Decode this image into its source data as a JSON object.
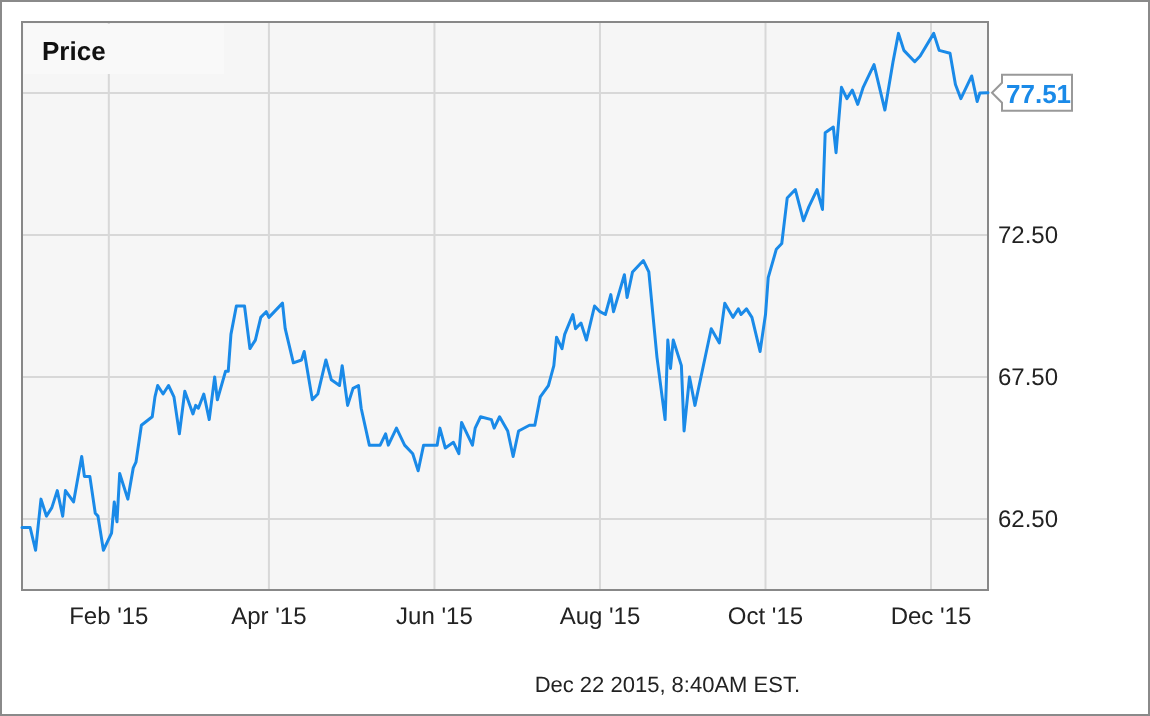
{
  "chart_data": {
    "type": "line",
    "title": "Price",
    "x": [
      "2014-12-31",
      "2015-01-03",
      "2015-01-05",
      "2015-01-07",
      "2015-01-09",
      "2015-01-11",
      "2015-01-13",
      "2015-01-15",
      "2015-01-16",
      "2015-01-19",
      "2015-01-22",
      "2015-01-23",
      "2015-01-25",
      "2015-01-27",
      "2015-01-28",
      "2015-01-30",
      "2015-02-02",
      "2015-02-03",
      "2015-02-04",
      "2015-02-05",
      "2015-02-08",
      "2015-02-10",
      "2015-02-11",
      "2015-02-13",
      "2015-02-17",
      "2015-02-18",
      "2015-02-19",
      "2015-02-21",
      "2015-02-23",
      "2015-02-25",
      "2015-02-27",
      "2015-03-01",
      "2015-03-04",
      "2015-03-05",
      "2015-03-06",
      "2015-03-08",
      "2015-03-10",
      "2015-03-12",
      "2015-03-13",
      "2015-03-16",
      "2015-03-17",
      "2015-03-18",
      "2015-03-20",
      "2015-03-23",
      "2015-03-25",
      "2015-03-27",
      "2015-03-29",
      "2015-03-31",
      "2015-04-01",
      "2015-04-06",
      "2015-04-07",
      "2015-04-10",
      "2015-04-13",
      "2015-04-14",
      "2015-04-17",
      "2015-04-19",
      "2015-04-22",
      "2015-04-24",
      "2015-04-27",
      "2015-04-28",
      "2015-04-30",
      "2015-05-02",
      "2015-05-04",
      "2015-05-05",
      "2015-05-08",
      "2015-05-12",
      "2015-05-14",
      "2015-05-15",
      "2015-05-18",
      "2015-05-21",
      "2015-05-24",
      "2015-05-26",
      "2015-05-28",
      "2015-06-02",
      "2015-06-03",
      "2015-06-05",
      "2015-06-08",
      "2015-06-10",
      "2015-06-11",
      "2015-06-15",
      "2015-06-16",
      "2015-06-18",
      "2015-06-22",
      "2015-06-23",
      "2015-06-25",
      "2015-06-28",
      "2015-06-30",
      "2015-07-02",
      "2015-07-06",
      "2015-07-08",
      "2015-07-10",
      "2015-07-13",
      "2015-07-15",
      "2015-07-16",
      "2015-07-18",
      "2015-07-19",
      "2015-07-22",
      "2015-07-23",
      "2015-07-25",
      "2015-07-27",
      "2015-07-30",
      "2015-08-01",
      "2015-08-03",
      "2015-08-05",
      "2015-08-06",
      "2015-08-10",
      "2015-08-11",
      "2015-08-13",
      "2015-08-15",
      "2015-08-17",
      "2015-08-19",
      "2015-08-22",
      "2015-08-25",
      "2015-08-26",
      "2015-08-27",
      "2015-08-28",
      "2015-08-31",
      "2015-09-01",
      "2015-09-03",
      "2015-09-05",
      "2015-09-09",
      "2015-09-11",
      "2015-09-14",
      "2015-09-16",
      "2015-09-19",
      "2015-09-21",
      "2015-09-22",
      "2015-09-24",
      "2015-09-26",
      "2015-09-29",
      "2015-10-01",
      "2015-10-02",
      "2015-10-05",
      "2015-10-07",
      "2015-10-09",
      "2015-10-12",
      "2015-10-15",
      "2015-10-17",
      "2015-10-20",
      "2015-10-22",
      "2015-10-23",
      "2015-10-26",
      "2015-10-27",
      "2015-10-29",
      "2015-10-31",
      "2015-11-02",
      "2015-11-04",
      "2015-11-06",
      "2015-11-07",
      "2015-11-10",
      "2015-11-14",
      "2015-11-17",
      "2015-11-19",
      "2015-11-21",
      "2015-11-25",
      "2015-11-27",
      "2015-12-02",
      "2015-12-04",
      "2015-12-08",
      "2015-12-10",
      "2015-12-12",
      "2015-12-16",
      "2015-12-18",
      "2015-12-19",
      "2015-12-22"
    ],
    "series": [
      {
        "color": "#1a8ae8",
        "values": [
          62.2,
          62.2,
          61.4,
          63.2,
          62.6,
          62.9,
          63.5,
          62.6,
          63.5,
          63.1,
          64.7,
          64.0,
          64.0,
          62.7,
          62.6,
          61.4,
          62.0,
          63.1,
          62.4,
          64.1,
          63.2,
          64.3,
          64.5,
          65.8,
          66.1,
          66.8,
          67.2,
          66.9,
          67.2,
          66.8,
          65.5,
          67.0,
          66.2,
          66.5,
          66.4,
          66.9,
          66.0,
          67.5,
          66.7,
          67.7,
          67.7,
          69.0,
          70.0,
          70.0,
          68.5,
          68.8,
          69.6,
          69.8,
          69.6,
          70.1,
          69.2,
          68.0,
          68.1,
          68.4,
          66.7,
          66.9,
          68.1,
          67.4,
          67.2,
          67.9,
          66.5,
          67.1,
          67.2,
          66.4,
          65.1,
          65.1,
          65.5,
          65.1,
          65.7,
          65.1,
          64.8,
          64.2,
          65.1,
          65.1,
          65.7,
          65.0,
          65.2,
          64.8,
          65.9,
          65.1,
          65.7,
          66.1,
          66.0,
          65.7,
          66.1,
          65.6,
          64.7,
          65.6,
          65.8,
          65.8,
          66.8,
          67.2,
          67.9,
          68.9,
          68.5,
          69.0,
          69.7,
          69.2,
          69.4,
          68.8,
          70.0,
          69.8,
          69.7,
          70.4,
          69.8,
          71.1,
          70.3,
          71.2,
          71.4,
          71.6,
          71.2,
          68.2,
          66.0,
          68.8,
          67.8,
          68.8,
          67.9,
          65.6,
          67.5,
          66.5,
          68.3,
          69.2,
          68.7,
          70.1,
          69.6,
          69.9,
          69.7,
          69.9,
          69.6,
          68.4,
          69.7,
          71.0,
          72.0,
          72.2,
          73.8,
          74.1,
          73.0,
          73.5,
          74.1,
          73.4,
          76.1,
          76.3,
          75.4,
          77.7,
          77.3,
          77.6,
          77.1,
          77.7,
          77.9,
          78.5,
          76.9,
          78.6,
          79.6,
          79.0,
          78.6,
          78.8,
          79.6,
          79.0,
          78.9,
          77.8,
          77.3,
          78.1,
          77.2,
          77.5,
          77.51
        ]
      }
    ],
    "xlim": [
      "2014-12-31",
      "2015-12-22"
    ],
    "xticks": [
      {
        "value": "2015-02-01",
        "label": "Feb '15"
      },
      {
        "value": "2015-04-01",
        "label": "Apr '15"
      },
      {
        "value": "2015-06-01",
        "label": "Jun '15"
      },
      {
        "value": "2015-08-01",
        "label": "Aug '15"
      },
      {
        "value": "2015-10-01",
        "label": "Oct '15"
      },
      {
        "value": "2015-12-01",
        "label": "Dec '15"
      }
    ],
    "ylim": [
      60,
      80
    ],
    "yticks": [
      {
        "value": 62.5,
        "label": "62.50"
      },
      {
        "value": 67.5,
        "label": "67.50"
      },
      {
        "value": 72.5,
        "label": "72.50"
      },
      {
        "value": 77.5,
        "label": null
      }
    ],
    "grid": true,
    "annotations": [
      {
        "text": "77.51",
        "x": "2015-12-22",
        "y": 77.51
      },
      "Dec 22 2015, 8:40AM EST."
    ]
  }
}
